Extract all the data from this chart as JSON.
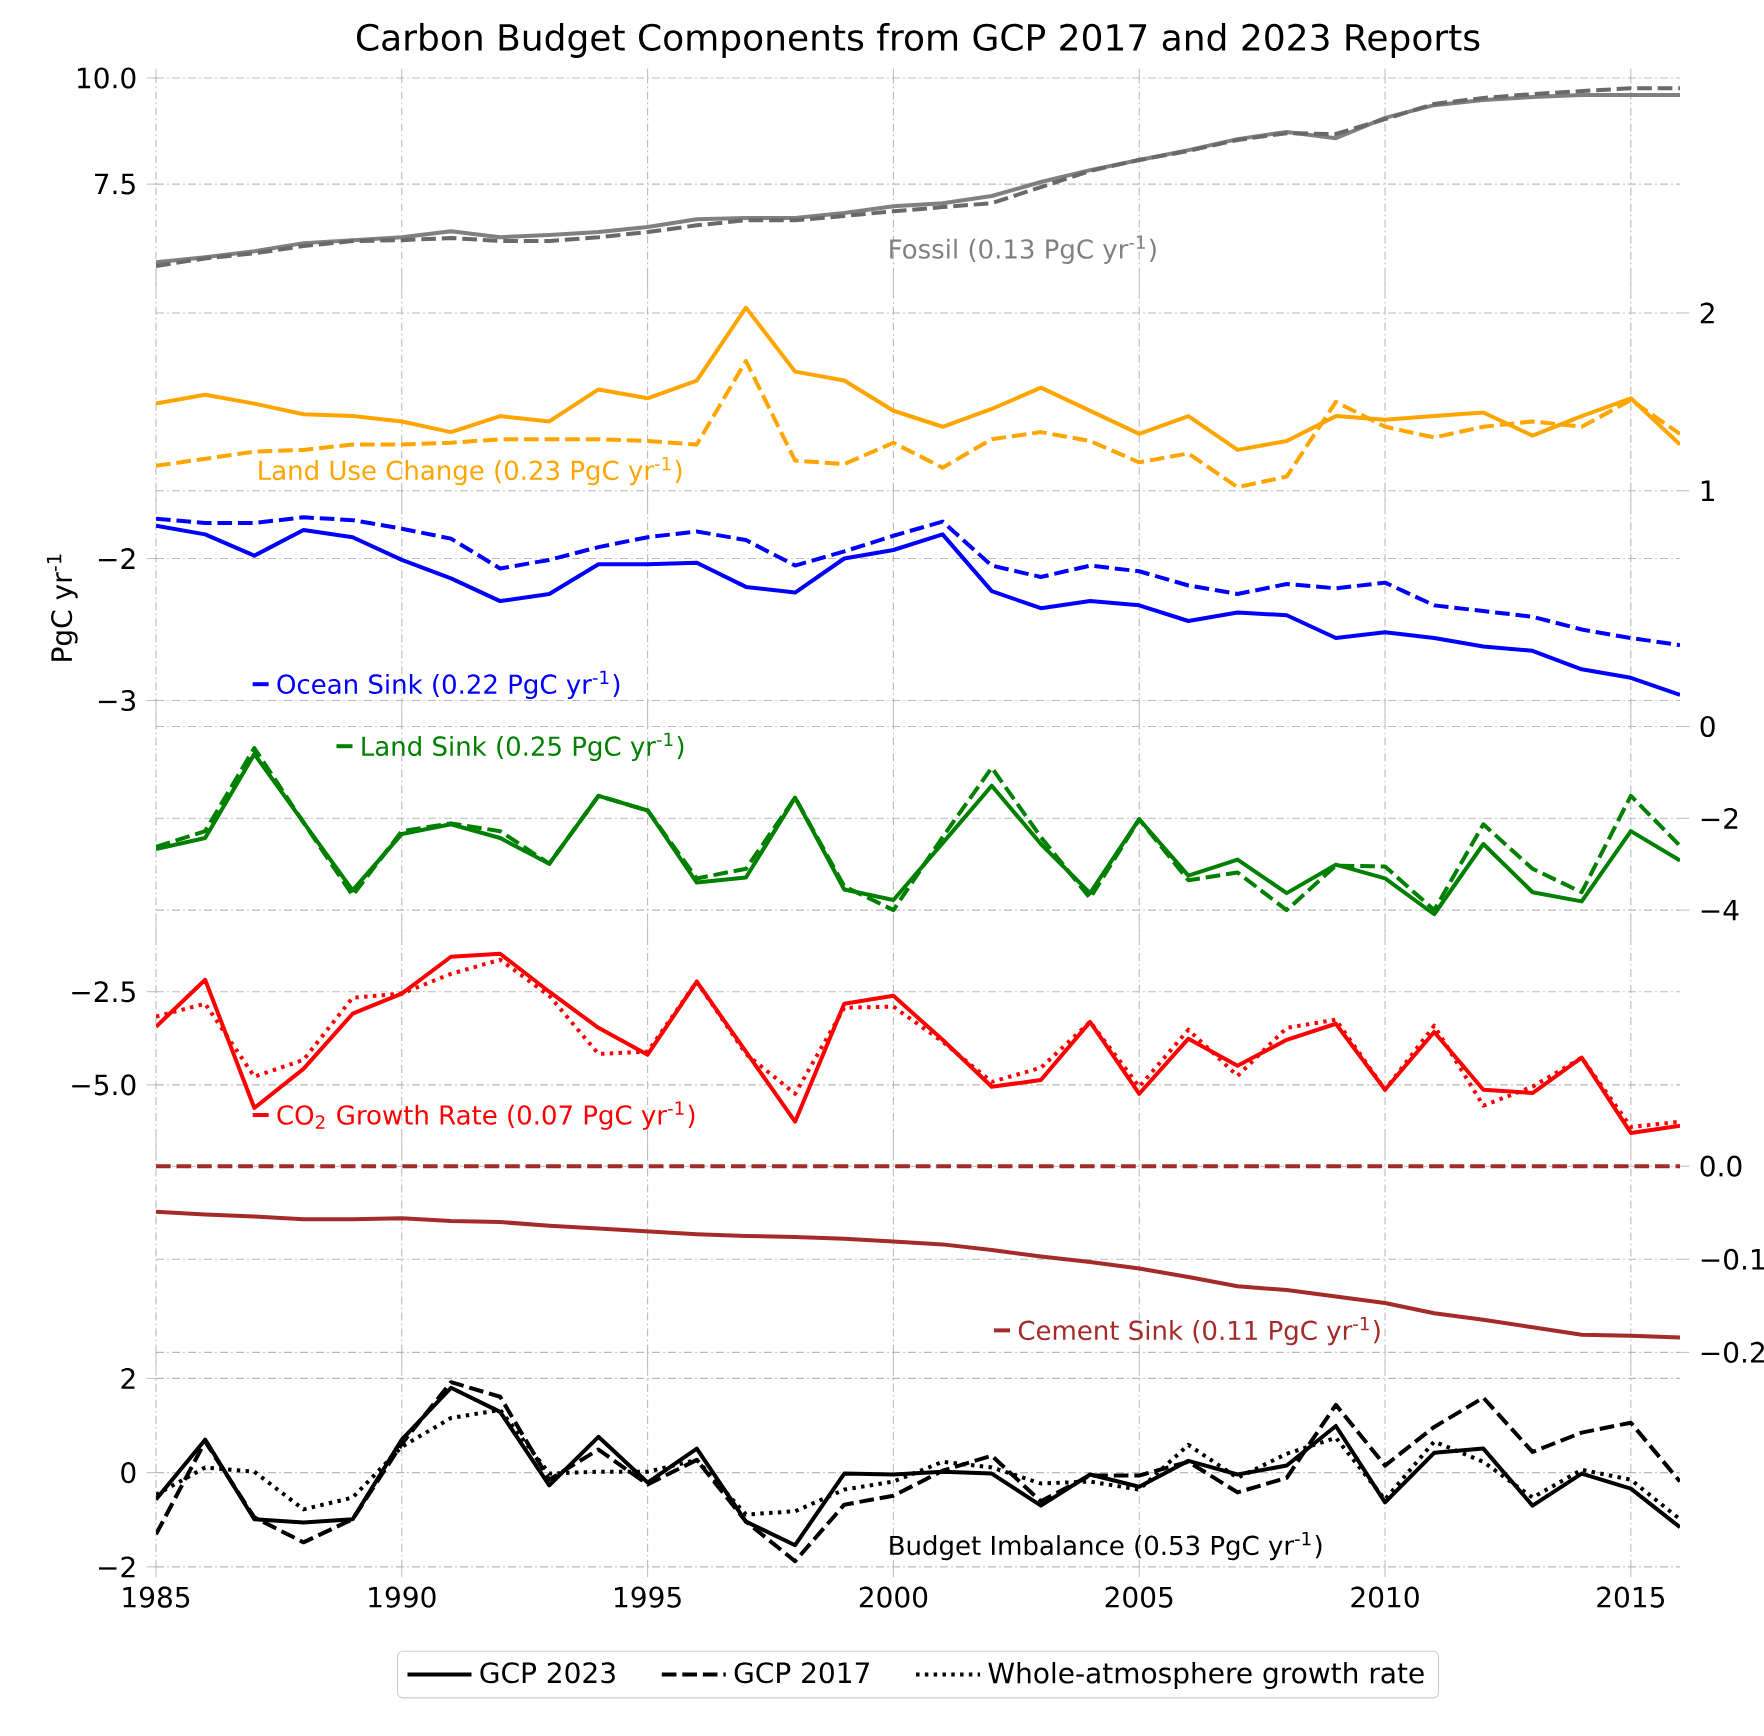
{
  "chart_data": [
    {
      "type": "line",
      "title": "Carbon Budget Components from GCP 2017 and 2023 Reports",
      "annotations": [
        "Fossil (0.13 PgC yr$^{-1}$)"
      ],
      "x": [
        1985,
        1986,
        1987,
        1988,
        1989,
        1990,
        1991,
        1992,
        1993,
        1994,
        1995,
        1996,
        1997,
        1998,
        1999,
        2000,
        2001,
        2002,
        2003,
        2004,
        2005,
        2006,
        2007,
        2008,
        2009,
        2010,
        2011,
        2012,
        2013,
        2014,
        2015,
        2016
      ],
      "xlim": [
        1985,
        2016
      ],
      "xticks": [
        1985,
        1990,
        1995,
        2000,
        2005,
        2010,
        2015
      ],
      "ylim": [
        5.35,
        10.0
      ],
      "yticks": [
        {
          "value": 7.5,
          "label": "7.5"
        },
        {
          "value": 10,
          "label": "10.0"
        }
      ],
      "grid": true,
      "tick_labels": "y",
      "series": [
        {
          "color": "#808080",
          "values": [
            5.66,
            5.78,
            5.92,
            6.11,
            6.18,
            6.25,
            6.39,
            6.25,
            6.3,
            6.37,
            6.49,
            6.67,
            6.7,
            6.7,
            6.82,
            6.98,
            7.05,
            7.22,
            7.55,
            7.83,
            8.07,
            8.3,
            8.56,
            8.73,
            8.58,
            9.06,
            9.36,
            9.48,
            9.55,
            9.6,
            9.6,
            9.6
          ]
        },
        {
          "color": "#696969",
          "line_style": "dashed",
          "values": [
            5.57,
            5.75,
            5.87,
            6.04,
            6.16,
            6.18,
            6.23,
            6.16,
            6.16,
            6.25,
            6.37,
            6.53,
            6.65,
            6.65,
            6.75,
            6.86,
            6.96,
            7.05,
            7.43,
            7.81,
            8.07,
            8.28,
            8.54,
            8.7,
            8.68,
            9.03,
            9.39,
            9.53,
            9.62,
            9.69,
            9.76,
            9.76
          ]
        }
      ]
    },
    {
      "type": "line",
      "annotations": [
        "Land Use Change (0.23 PgC yr$^{-1}$)"
      ],
      "x": [
        1985,
        1986,
        1987,
        1988,
        1989,
        1990,
        1991,
        1992,
        1993,
        1994,
        1995,
        1996,
        1997,
        1998,
        1999,
        2000,
        2001,
        2002,
        2003,
        2004,
        2005,
        2006,
        2007,
        2008,
        2009,
        2010,
        2011,
        2012,
        2013,
        2014,
        2015,
        2016
      ],
      "xlim": [
        1985,
        2016
      ],
      "xticks": [
        1985,
        1990,
        1995,
        2000,
        2005,
        2010,
        2015
      ],
      "y2lim": [
        1.0,
        2.11
      ],
      "y2ticks": [
        1,
        2
      ],
      "grid": true,
      "tick_labels": "y",
      "series": [
        {
          "color": "#ffa500",
          "axis": "y2",
          "values": [
            1.49,
            1.54,
            1.49,
            1.43,
            1.42,
            1.39,
            1.33,
            1.42,
            1.39,
            1.57,
            1.52,
            1.62,
            2.03,
            1.67,
            1.62,
            1.45,
            1.36,
            1.46,
            1.58,
            1.45,
            1.32,
            1.42,
            1.23,
            1.28,
            1.42,
            1.4,
            1.42,
            1.44,
            1.31,
            1.42,
            1.52,
            1.26
          ]
        },
        {
          "color": "#ffa500",
          "axis": "y2",
          "line_style": "dashed",
          "values": [
            1.14,
            1.18,
            1.22,
            1.23,
            1.26,
            1.26,
            1.27,
            1.29,
            1.29,
            1.29,
            1.28,
            1.26,
            1.73,
            1.17,
            1.15,
            1.27,
            1.13,
            1.29,
            1.33,
            1.28,
            1.16,
            1.21,
            1.02,
            1.08,
            1.5,
            1.36,
            1.3,
            1.36,
            1.39,
            1.36,
            1.51,
            1.32
          ]
        }
      ]
    },
    {
      "type": "line",
      "ylabel": "PgC yr$^{-1}$",
      "x": [
        1985,
        1986,
        1987,
        1988,
        1989,
        1990,
        1991,
        1992,
        1993,
        1994,
        1995,
        1996,
        1997,
        1998,
        1999,
        2000,
        2001,
        2002,
        2003,
        2004,
        2005,
        2006,
        2007,
        2008,
        2009,
        2010,
        2011,
        2012,
        2013,
        2014,
        2015,
        2016
      ],
      "xlim": [
        1985,
        2016
      ],
      "xticks": [
        1985,
        1990,
        1995,
        2000,
        2005,
        2010,
        2015
      ],
      "ylim": [
        -3.04,
        -1.65
      ],
      "yticks": [
        {
          "value": -3,
          "label": "−3"
        },
        {
          "value": -2,
          "label": "−2"
        }
      ],
      "grid": true,
      "tick_labels": "y",
      "legend": "bottom left",
      "series": [
        {
          "name": "Ocean Sink (0.22 PgC yr$^{-1}$)",
          "color": "#0000ff",
          "values": [
            -1.77,
            -1.83,
            -1.98,
            -1.8,
            -1.85,
            -2.01,
            -2.14,
            -2.3,
            -2.25,
            -2.04,
            -2.04,
            -2.03,
            -2.2,
            -2.24,
            -2.0,
            -1.94,
            -1.83,
            -2.23,
            -2.35,
            -2.3,
            -2.33,
            -2.44,
            -2.38,
            -2.4,
            -2.56,
            -2.52,
            -2.56,
            -2.62,
            -2.65,
            -2.78,
            -2.84,
            -2.96
          ]
        },
        {
          "color": "#0000ff",
          "line_style": "dashed",
          "values": [
            -1.72,
            -1.75,
            -1.75,
            -1.71,
            -1.73,
            -1.79,
            -1.86,
            -2.07,
            -2.01,
            -1.92,
            -1.85,
            -1.81,
            -1.87,
            -2.05,
            -1.95,
            -1.84,
            -1.74,
            -2.05,
            -2.13,
            -2.05,
            -2.09,
            -2.19,
            -2.25,
            -2.18,
            -2.21,
            -2.17,
            -2.33,
            -2.37,
            -2.41,
            -2.5,
            -2.56,
            -2.61
          ]
        }
      ]
    },
    {
      "type": "line",
      "x": [
        1985,
        1986,
        1987,
        1988,
        1989,
        1990,
        1991,
        1992,
        1993,
        1994,
        1995,
        1996,
        1997,
        1998,
        1999,
        2000,
        2001,
        2002,
        2003,
        2004,
        2005,
        2006,
        2007,
        2008,
        2009,
        2010,
        2011,
        2012,
        2013,
        2014,
        2015,
        2016
      ],
      "xlim": [
        1985,
        2016
      ],
      "xticks": [
        1985,
        1990,
        1995,
        2000,
        2005,
        2010,
        2015
      ],
      "y2lim": [
        -4.25,
        0.05
      ],
      "y2ticks": [
        {
          "value": -4,
          "label": "−4"
        },
        {
          "value": -2,
          "label": "−2"
        },
        0
      ],
      "grid": true,
      "tick_labels": "y",
      "legend": "top left",
      "series": [
        {
          "name": "Land Sink (0.25 PgC yr$^{-1}$)",
          "color": "#008000",
          "axis": "y2",
          "values": [
            -2.67,
            -2.43,
            -0.6,
            -2.09,
            -3.57,
            -2.34,
            -2.13,
            -2.43,
            -2.99,
            -1.51,
            -1.83,
            -3.4,
            -3.29,
            -1.55,
            -3.55,
            -3.78,
            -2.54,
            -1.29,
            -2.56,
            -3.63,
            -2.02,
            -3.25,
            -2.9,
            -3.63,
            -3.01,
            -3.31,
            -4.09,
            -2.56,
            -3.61,
            -3.81,
            -2.28,
            -2.92
          ]
        },
        {
          "color": "#008000",
          "axis": "y2",
          "line_style": "dashed",
          "values": [
            -2.62,
            -2.28,
            -0.47,
            -2.09,
            -3.68,
            -2.28,
            -2.11,
            -2.28,
            -2.99,
            -1.51,
            -1.83,
            -3.31,
            -3.1,
            -1.55,
            -3.48,
            -4.0,
            -2.41,
            -0.9,
            -2.41,
            -3.74,
            -2.02,
            -3.35,
            -3.18,
            -4.0,
            -3.03,
            -3.05,
            -4.0,
            -2.13,
            -3.1,
            -3.61,
            -1.51,
            -2.6
          ]
        }
      ]
    },
    {
      "type": "line",
      "x": [
        1985,
        1986,
        1987,
        1988,
        1989,
        1990,
        1991,
        1992,
        1993,
        1994,
        1995,
        1996,
        1997,
        1998,
        1999,
        2000,
        2001,
        2002,
        2003,
        2004,
        2005,
        2006,
        2007,
        2008,
        2009,
        2010,
        2011,
        2012,
        2013,
        2014,
        2015,
        2016
      ],
      "xlim": [
        1985,
        2016
      ],
      "xticks": [
        1985,
        1990,
        1995,
        2000,
        2005,
        2010,
        2015
      ],
      "ylim": [
        -6.4,
        -1.1
      ],
      "yticks": [
        {
          "value": -5,
          "label": "−5.0"
        },
        {
          "value": -2.5,
          "label": "−2.5"
        }
      ],
      "grid": true,
      "tick_labels": "y",
      "legend": "bottom left",
      "series": [
        {
          "name": "CO$_{2}$ Growth Rate (0.07 PgC yr$^{-1}$)",
          "color": "#ff0000",
          "values": [
            -3.44,
            -2.18,
            -5.62,
            -4.57,
            -3.09,
            -2.55,
            -1.56,
            -1.48,
            -2.5,
            -3.47,
            -4.19,
            -2.23,
            -4.11,
            -5.99,
            -2.82,
            -2.61,
            -3.79,
            -5.05,
            -4.87,
            -3.31,
            -5.24,
            -3.76,
            -4.49,
            -3.79,
            -3.36,
            -5.13,
            -3.58,
            -5.13,
            -5.22,
            -4.27,
            -6.29,
            -6.1
          ]
        },
        {
          "color": "#ff0000",
          "line_style": "dotted",
          "values": [
            -3.17,
            -2.82,
            -4.78,
            -4.33,
            -2.66,
            -2.55,
            -2.02,
            -1.64,
            -2.61,
            -4.17,
            -4.11,
            -2.23,
            -4.17,
            -5.24,
            -2.93,
            -2.9,
            -3.84,
            -4.92,
            -4.54,
            -3.31,
            -5.05,
            -3.52,
            -4.76,
            -3.47,
            -3.25,
            -5.13,
            -3.41,
            -5.56,
            -5.05,
            -4.27,
            -6.13,
            -5.99
          ]
        }
      ]
    },
    {
      "type": "line",
      "x": [
        1985,
        1986,
        1987,
        1988,
        1989,
        1990,
        1991,
        1992,
        1993,
        1994,
        1995,
        1996,
        1997,
        1998,
        1999,
        2000,
        2001,
        2002,
        2003,
        2004,
        2005,
        2006,
        2007,
        2008,
        2009,
        2010,
        2011,
        2012,
        2013,
        2014,
        2015,
        2016
      ],
      "xlim": [
        1985,
        2016
      ],
      "xticks": [
        1985,
        1990,
        1995,
        2000,
        2005,
        2010,
        2015
      ],
      "y2lim": [
        -0.2,
        0.012
      ],
      "y2ticks": [
        {
          "value": -0.2,
          "label": "−0.2"
        },
        {
          "value": -0.1,
          "label": "−0.1"
        },
        {
          "value": 0,
          "label": "0.0"
        }
      ],
      "grid": true,
      "tick_labels": "y",
      "legend": "bottom right",
      "series": [
        {
          "name": "Cement Sink (0.11 PgC yr$^{-1}$)",
          "color": "#a52a2a",
          "axis": "y2",
          "values": [
            -0.049,
            -0.052,
            -0.054,
            -0.057,
            -0.057,
            -0.056,
            -0.059,
            -0.06,
            -0.064,
            -0.067,
            -0.07,
            -0.073,
            -0.075,
            -0.076,
            -0.078,
            -0.081,
            -0.084,
            -0.09,
            -0.097,
            -0.103,
            -0.11,
            -0.119,
            -0.129,
            -0.133,
            -0.14,
            -0.147,
            -0.158,
            -0.165,
            -0.173,
            -0.181,
            -0.182,
            -0.184
          ]
        },
        {
          "color": "#a52a2a",
          "axis": "y2",
          "line_style": "dashed",
          "values": [
            0,
            0,
            0,
            0,
            0,
            0,
            0,
            0,
            0,
            0,
            0,
            0,
            0,
            0,
            0,
            0,
            0,
            0,
            0,
            0,
            0,
            0,
            0,
            0,
            0,
            0,
            0,
            0,
            0,
            0,
            0,
            0
          ]
        }
      ]
    },
    {
      "type": "line",
      "annotations": [
        "Budget Imbalance (0.53 PgC yr$^{-1}$)"
      ],
      "x": [
        1985,
        1986,
        1987,
        1988,
        1989,
        1990,
        1991,
        1992,
        1993,
        1994,
        1995,
        1996,
        1997,
        1998,
        1999,
        2000,
        2001,
        2002,
        2003,
        2004,
        2005,
        2006,
        2007,
        2008,
        2009,
        2010,
        2011,
        2012,
        2013,
        2014,
        2015,
        2016
      ],
      "xlim": [
        1985,
        2016
      ],
      "xticks": [
        1985,
        1990,
        1995,
        2000,
        2005,
        2010,
        2015
      ],
      "ylim": [
        -2.02,
        2.17
      ],
      "yticks": [
        {
          "value": -2,
          "label": "−2"
        },
        0,
        2
      ],
      "grid": true,
      "legend": "bottom",
      "series": [
        {
          "name": "GCP 2023",
          "color": "#000000",
          "values": [
            -0.57,
            0.7,
            -0.99,
            -1.06,
            -0.99,
            0.7,
            1.8,
            1.29,
            -0.27,
            0.76,
            -0.21,
            0.51,
            -1.04,
            -1.54,
            -0.02,
            -0.04,
            0.02,
            -0.02,
            -0.7,
            -0.04,
            -0.3,
            0.25,
            -0.04,
            0.15,
            0.99,
            -0.63,
            0.42,
            0.51,
            -0.7,
            -0.02,
            -0.34,
            -1.16
          ]
        },
        {
          "name": "GCP 2017",
          "color": "#000000",
          "line_style": "dashed",
          "values": [
            -1.31,
            0.66,
            -0.95,
            -1.48,
            -0.99,
            0.61,
            1.92,
            1.61,
            -0.15,
            0.49,
            -0.25,
            0.27,
            -1.04,
            -1.88,
            -0.68,
            -0.49,
            0.04,
            0.36,
            -0.61,
            -0.06,
            -0.06,
            0.23,
            -0.42,
            -0.11,
            1.44,
            0.15,
            0.97,
            1.59,
            0.44,
            0.85,
            1.06,
            -0.19
          ]
        },
        {
          "name": "Whole-atmosphere growth rate",
          "color": "#000000",
          "line_style": "dotted",
          "values": [
            -0.47,
            0.11,
            0.02,
            -0.78,
            -0.53,
            0.55,
            1.16,
            1.33,
            -0.02,
            0.02,
            0.02,
            0.27,
            -0.89,
            -0.82,
            -0.36,
            -0.19,
            0.23,
            0.11,
            -0.23,
            -0.19,
            -0.36,
            0.59,
            -0.11,
            0.4,
            0.74,
            -0.57,
            0.66,
            0.23,
            -0.53,
            0.06,
            -0.15,
            -0.99
          ]
        }
      ]
    }
  ]
}
